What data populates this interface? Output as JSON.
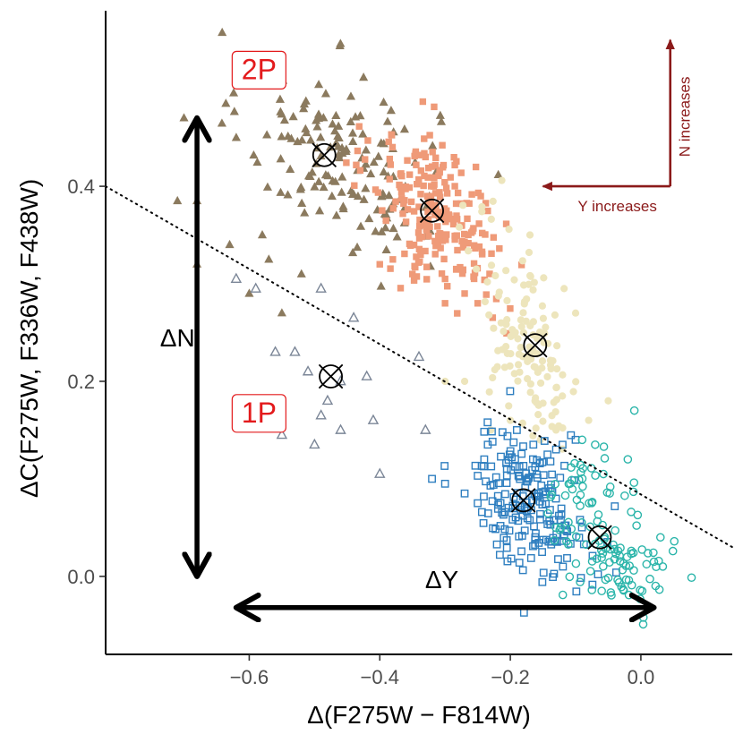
{
  "chart_data": {
    "type": "scatter",
    "xlabel": "Δ(F275W − F814W)",
    "ylabel": "ΔC(F275W, F336W, F438W)",
    "xlim": [
      -0.82,
      0.14
    ],
    "ylim": [
      -0.08,
      0.58
    ],
    "x_ticks": [
      -0.6,
      -0.4,
      -0.2,
      0.0
    ],
    "x_tick_labels": [
      "−0.6",
      "−0.4",
      "−0.2",
      "0.0"
    ],
    "y_ticks": [
      0.0,
      0.2,
      0.4
    ],
    "y_tick_labels": [
      "0.0",
      "0.2",
      "0.4"
    ],
    "grid": false,
    "legend": "none",
    "separator_line": {
      "style": "dotted",
      "points": [
        [
          -0.82,
          0.4
        ],
        [
          0.14,
          0.03
        ]
      ]
    },
    "colors": {
      "2P_first": "#8b7a5e",
      "2P_second": "#ef9a78",
      "2P_third": "#ede5bc",
      "1P_first": "#7b8697",
      "1P_second": "#2f7fc0",
      "1P_third": "#2bb5aa",
      "direction": "#8b1a1a",
      "pop_label": "#e31a1c"
    },
    "series": [
      {
        "name": "2P-brown",
        "marker": "triangle-filled",
        "color": "#8b7a5e",
        "cloud": {
          "center": [
            -0.46,
            0.43
          ],
          "spread": [
            0.075,
            0.045
          ],
          "n": 150,
          "tilt": -0.22
        },
        "extra_points": [
          [
            -0.7,
            0.47
          ],
          [
            -0.68,
            0.385
          ],
          [
            -0.71,
            0.385
          ],
          [
            -0.68,
            0.32
          ],
          [
            -0.63,
            0.34
          ],
          [
            -0.57,
            0.325
          ],
          [
            -0.6,
            0.29
          ],
          [
            -0.55,
            0.27
          ],
          [
            -0.58,
            0.35
          ],
          [
            -0.52,
            0.31
          ]
        ]
      },
      {
        "name": "2P-salmon",
        "marker": "square-filled",
        "color": "#ef9a78",
        "cloud": {
          "center": [
            -0.31,
            0.37
          ],
          "spread": [
            0.05,
            0.04
          ],
          "n": 220,
          "tilt": -0.5
        },
        "extra_points": [
          [
            -0.4,
            0.32
          ],
          [
            -0.38,
            0.325
          ],
          [
            -0.35,
            0.31
          ],
          [
            -0.3,
            0.305
          ],
          [
            -0.27,
            0.29
          ],
          [
            -0.25,
            0.28
          ],
          [
            -0.3,
            0.28
          ],
          [
            -0.33,
            0.43
          ]
        ]
      },
      {
        "name": "2P-cream",
        "marker": "circle-filled",
        "color": "#ede5bc",
        "cloud": {
          "center": [
            -0.17,
            0.24
          ],
          "spread": [
            0.04,
            0.05
          ],
          "n": 130,
          "tilt": -0.6
        },
        "extra_points": [
          [
            -0.1,
            0.27
          ],
          [
            -0.05,
            0.18
          ],
          [
            -0.08,
            0.16
          ],
          [
            -0.2,
            0.16
          ],
          [
            -0.27,
            0.2
          ],
          [
            -0.23,
            0.15
          ],
          [
            -0.13,
            0.15
          ],
          [
            -0.3,
            0.2
          ]
        ]
      },
      {
        "name": "1P-grey",
        "marker": "triangle-open",
        "color": "#7b8697",
        "points": [
          [
            -0.62,
            0.305
          ],
          [
            -0.59,
            0.295
          ],
          [
            -0.49,
            0.295
          ],
          [
            -0.44,
            0.265
          ],
          [
            -0.56,
            0.23
          ],
          [
            -0.53,
            0.23
          ],
          [
            -0.51,
            0.21
          ],
          [
            -0.46,
            0.2
          ],
          [
            -0.42,
            0.205
          ],
          [
            -0.34,
            0.225
          ],
          [
            -0.48,
            0.18
          ],
          [
            -0.49,
            0.165
          ],
          [
            -0.46,
            0.15
          ],
          [
            -0.41,
            0.16
          ],
          [
            -0.55,
            0.145
          ],
          [
            -0.5,
            0.135
          ],
          [
            -0.33,
            0.15
          ],
          [
            -0.4,
            0.105
          ]
        ]
      },
      {
        "name": "1P-blue",
        "marker": "square-open",
        "color": "#2f7fc0",
        "cloud": {
          "center": [
            -0.17,
            0.075
          ],
          "spread": [
            0.045,
            0.035
          ],
          "n": 190,
          "tilt": -0.3
        },
        "extra_points": [
          [
            -0.32,
            0.1
          ],
          [
            -0.3,
            0.095
          ],
          [
            -0.27,
            0.085
          ],
          [
            -0.25,
            0.075
          ],
          [
            -0.24,
            0.12
          ],
          [
            -0.19,
            0.15
          ],
          [
            -0.12,
            0.135
          ],
          [
            -0.1,
            0.14
          ]
        ]
      },
      {
        "name": "1P-teal",
        "marker": "circle-open",
        "color": "#2bb5aa",
        "cloud": {
          "center": [
            -0.05,
            0.04
          ],
          "spread": [
            0.045,
            0.035
          ],
          "n": 120,
          "tilt": -0.4
        },
        "extra_points": [
          [
            -0.07,
            0.135
          ],
          [
            -0.09,
            0.14
          ],
          [
            -0.01,
            0.17
          ],
          [
            -0.02,
            0.12
          ],
          [
            0.03,
            0.04
          ],
          [
            0.02,
            0.015
          ],
          [
            -0.06,
            -0.015
          ]
        ]
      }
    ],
    "centroids": [
      [
        -0.485,
        0.432
      ],
      [
        -0.32,
        0.375
      ],
      [
        -0.162,
        0.237
      ],
      [
        -0.475,
        0.205
      ],
      [
        -0.18,
        0.078
      ],
      [
        -0.063,
        0.04
      ]
    ],
    "double_arrows": [
      {
        "name": "delta-n-arrow",
        "from": [
          -0.68,
          0.0
        ],
        "to": [
          -0.68,
          0.47
        ],
        "label": "ΔN",
        "label_at": [
          -0.71,
          0.245
        ]
      },
      {
        "name": "delta-y-arrow",
        "from": [
          -0.62,
          -0.032
        ],
        "to": [
          0.02,
          -0.032
        ],
        "label": "ΔY",
        "label_at": [
          -0.305,
          -0.003
        ]
      }
    ],
    "population_labels": [
      {
        "name": "label-2p",
        "text": "2P",
        "at": [
          -0.585,
          0.52
        ]
      },
      {
        "name": "label-1p",
        "text": "1P",
        "at": [
          -0.585,
          0.168
        ]
      }
    ],
    "direction_indicator": {
      "origin": [
        0.045,
        0.4
      ],
      "left_end": [
        -0.15,
        0.4
      ],
      "up_end": [
        0.045,
        0.55
      ],
      "horizontal_label": "Y increases",
      "vertical_label": "N increases"
    }
  }
}
